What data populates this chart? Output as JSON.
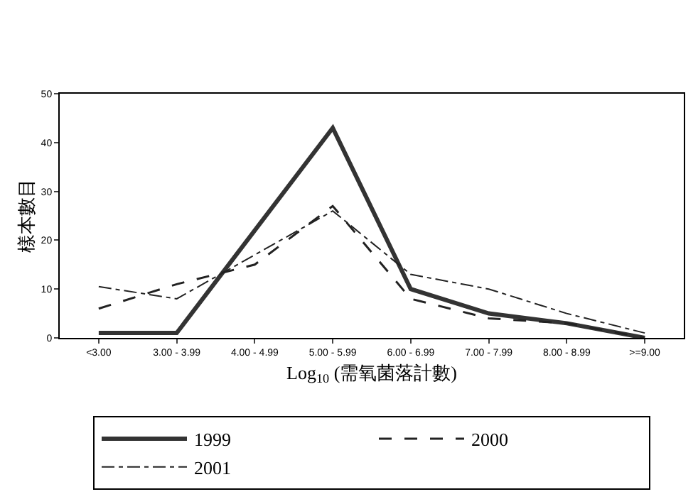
{
  "chart_data": {
    "type": "line",
    "xlabel": "Log$_{10}$ (需氧菌落計數)",
    "ylabel": "樣本數目",
    "categories": [
      "<3.00",
      "3.00 - 3.99",
      "4.00 - 4.99",
      "5.00 - 5.99",
      "6.00 - 6.99",
      "7.00 - 7.99",
      "8.00 - 8.99",
      ">=9.00"
    ],
    "series": [
      {
        "name": "1999",
        "color": "#333333",
        "line_style": "solid",
        "values": [
          1,
          1,
          22,
          43,
          10,
          5,
          3,
          0
        ]
      },
      {
        "name": "2000",
        "color": "#222222",
        "line_style": "dashed",
        "values": [
          6,
          11,
          15,
          27,
          8,
          4,
          3,
          0
        ]
      },
      {
        "name": "2001",
        "color": "#222222",
        "line_style": "dashdot",
        "values": [
          10.5,
          8,
          17,
          26,
          13,
          10,
          5,
          1
        ]
      }
    ],
    "ylim": [
      0,
      50
    ],
    "yticks": [
      0,
      10,
      20,
      30,
      40,
      50
    ],
    "grid": false,
    "legend": "bottom",
    "marker": "none"
  }
}
